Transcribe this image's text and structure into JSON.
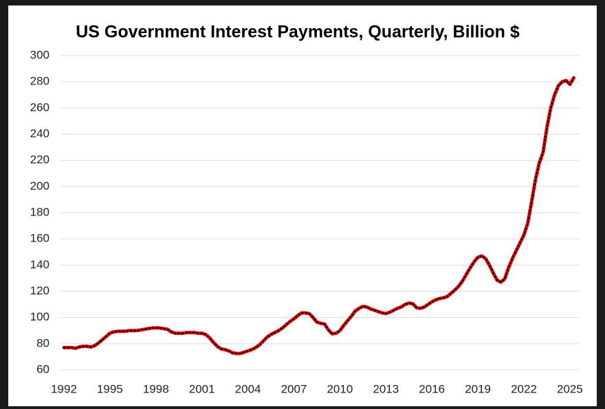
{
  "chart_data": {
    "type": "line",
    "title": "US Government Interest Payments, Quarterly, Billion $",
    "x": [
      1992,
      1992.25,
      1992.5,
      1992.75,
      1993,
      1993.25,
      1993.5,
      1993.75,
      1994,
      1994.25,
      1994.5,
      1994.75,
      1995,
      1995.25,
      1995.5,
      1995.75,
      1996,
      1996.25,
      1996.5,
      1996.75,
      1997,
      1997.25,
      1997.5,
      1997.75,
      1998,
      1998.25,
      1998.5,
      1998.75,
      1999,
      1999.25,
      1999.5,
      1999.75,
      2000,
      2000.25,
      2000.5,
      2000.75,
      2001,
      2001.25,
      2001.5,
      2001.75,
      2002,
      2002.25,
      2002.5,
      2002.75,
      2003,
      2003.25,
      2003.5,
      2003.75,
      2004,
      2004.25,
      2004.5,
      2004.75,
      2005,
      2005.25,
      2005.5,
      2005.75,
      2006,
      2006.25,
      2006.5,
      2006.75,
      2007,
      2007.25,
      2007.5,
      2007.75,
      2008,
      2008.25,
      2008.5,
      2008.75,
      2009,
      2009.25,
      2009.5,
      2009.75,
      2010,
      2010.25,
      2010.5,
      2010.75,
      2011,
      2011.25,
      2011.5,
      2011.75,
      2012,
      2012.25,
      2012.5,
      2012.75,
      2013,
      2013.25,
      2013.5,
      2013.75,
      2014,
      2014.25,
      2014.5,
      2014.75,
      2015,
      2015.25,
      2015.5,
      2015.75,
      2016,
      2016.25,
      2016.5,
      2016.75,
      2017,
      2017.25,
      2017.5,
      2017.75,
      2018,
      2018.25,
      2018.5,
      2018.75,
      2019,
      2019.25,
      2019.5,
      2019.75,
      2020,
      2020.25,
      2020.5,
      2020.75,
      2021,
      2021.25,
      2021.5,
      2021.75,
      2022,
      2022.25,
      2022.5,
      2022.75,
      2023,
      2023.25,
      2023.5,
      2023.75,
      2024,
      2024.25,
      2024.5,
      2024.75,
      2025,
      2025.25
    ],
    "series": [
      {
        "color": "#ff0000",
        "values": [
          77,
          77,
          77,
          76.5,
          77.5,
          78,
          78,
          77.5,
          78.5,
          80.5,
          83,
          85.5,
          88,
          89,
          89.5,
          89.5,
          89.5,
          90,
          90,
          90,
          90.5,
          91,
          91.5,
          92,
          92,
          92,
          91.5,
          91,
          89,
          88,
          88,
          88,
          88.5,
          88.5,
          88.5,
          88,
          88,
          87,
          84.5,
          81,
          78,
          76,
          75.5,
          74.5,
          73,
          72.5,
          72.5,
          73.5,
          74.5,
          75.5,
          77,
          79,
          82,
          85,
          87,
          88.5,
          90,
          92,
          94.5,
          97,
          99,
          101.5,
          103.5,
          103.5,
          103,
          100,
          96.5,
          95.5,
          95,
          90.5,
          87.5,
          88,
          90,
          94,
          97.5,
          101,
          105,
          107,
          108.5,
          108,
          106.5,
          105.5,
          104.5,
          103.5,
          103,
          104,
          105.5,
          107,
          108,
          110,
          111,
          110.5,
          107.5,
          107,
          108,
          110,
          112,
          113.5,
          114.5,
          115,
          116,
          118.5,
          121,
          124,
          128,
          133,
          138,
          142.5,
          146,
          147,
          145,
          140,
          134,
          128.5,
          127,
          129.5,
          138,
          145,
          151,
          157,
          163,
          172,
          188,
          205,
          218,
          226,
          245,
          260,
          270,
          277,
          280,
          281,
          278,
          283
        ]
      }
    ],
    "xlim": [
      1991.8,
      2025.6
    ],
    "xticks": [
      1992,
      1995,
      1998,
      2001,
      2004,
      2007,
      2010,
      2013,
      2016,
      2019,
      2022,
      2025
    ],
    "ylim": [
      60,
      300
    ],
    "yticks": [
      60,
      80,
      100,
      120,
      140,
      160,
      180,
      200,
      220,
      240,
      260,
      280,
      300
    ],
    "grid": true
  }
}
